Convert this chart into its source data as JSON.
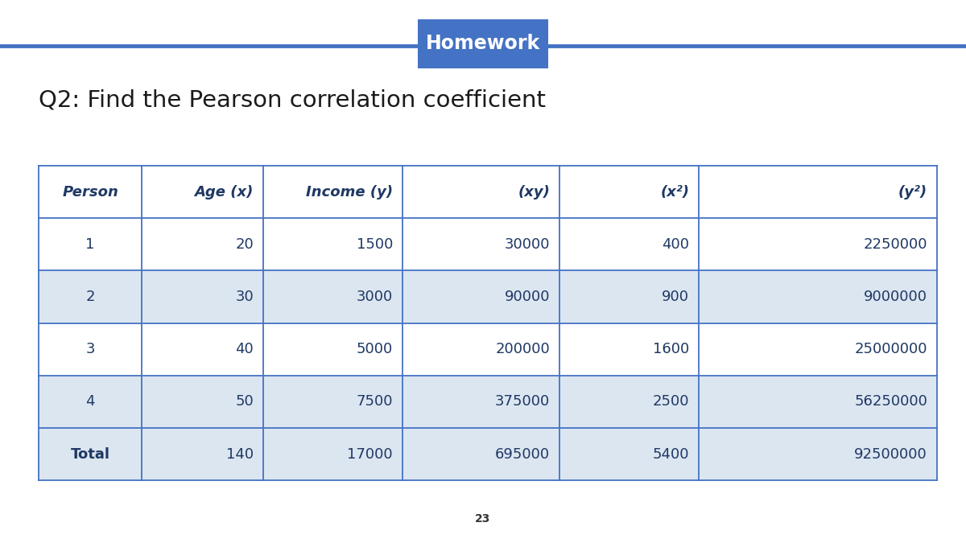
{
  "title": "Homework",
  "subtitle": "Q2: Find the Pearson correlation coefficient",
  "page_number": "23",
  "header_bg": "#4472C4",
  "header_text_color": "#FFFFFF",
  "title_line_color": "#4472C4",
  "table_header_text_color": "#1F3864",
  "table_data_text_color": "#1F3864",
  "table_border_color": "#4472C4",
  "col_header_bg": "#FFFFFF",
  "row_bg_odd": "#FFFFFF",
  "row_bg_even": "#DCE6F1",
  "total_row_bg": "#DCE6F1",
  "columns": [
    "Person",
    "Age (x)",
    "Income (y)",
    "(xy)",
    "(x²)",
    "(y²)"
  ],
  "rows": [
    [
      "1",
      "20",
      "1500",
      "30000",
      "400",
      "2250000"
    ],
    [
      "2",
      "30",
      "3000",
      "90000",
      "900",
      "9000000"
    ],
    [
      "3",
      "40",
      "5000",
      "200000",
      "1600",
      "25000000"
    ],
    [
      "4",
      "50",
      "7500",
      "375000",
      "2500",
      "56250000"
    ],
    [
      "Total",
      "140",
      "17000",
      "695000",
      "5400",
      "92500000"
    ]
  ],
  "col_alignments": [
    "center",
    "right",
    "right",
    "right",
    "right",
    "right"
  ],
  "fig_width": 12.0,
  "fig_height": 6.75,
  "bg_color": "#FFFFFF"
}
